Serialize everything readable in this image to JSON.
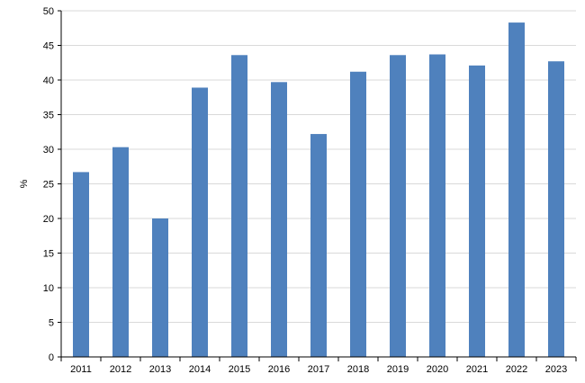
{
  "chart_data": {
    "type": "bar",
    "title": "",
    "xlabel": "",
    "ylabel": "%",
    "categories": [
      "2011",
      "2012",
      "2013",
      "2014",
      "2015",
      "2016",
      "2017",
      "2018",
      "2019",
      "2020",
      "2021",
      "2022",
      "2023"
    ],
    "values": [
      26.7,
      30.3,
      20.0,
      38.9,
      43.6,
      39.7,
      32.2,
      41.2,
      43.6,
      43.7,
      42.1,
      48.3,
      42.7
    ],
    "ylim": [
      0,
      50
    ],
    "yticks": [
      0,
      5,
      10,
      15,
      20,
      25,
      30,
      35,
      40,
      45,
      50
    ],
    "grid": "horizontal",
    "legend": "none",
    "colors": {
      "bar": "#4f81bd",
      "grid": "#d9d9d9",
      "axis": "#000000"
    }
  }
}
